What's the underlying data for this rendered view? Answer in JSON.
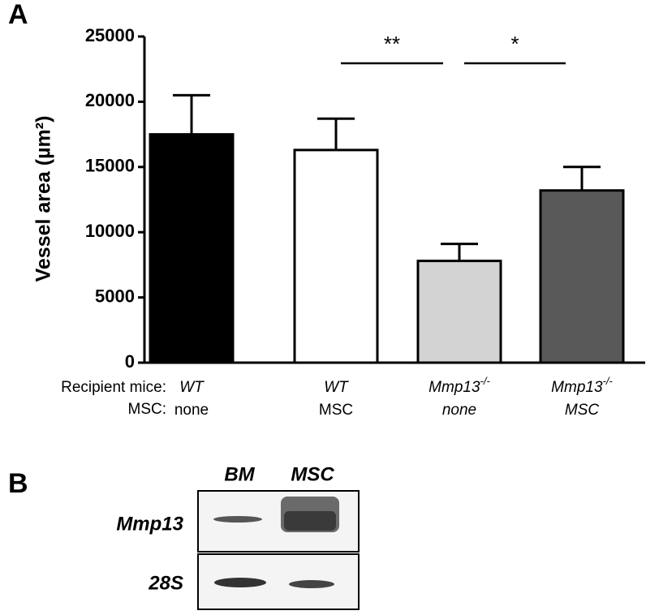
{
  "chart_data": {
    "type": "bar",
    "panel_label": "A",
    "ylabel": "Vessel area (µm²)",
    "ylim": [
      0,
      25000
    ],
    "yticks": [
      0,
      5000,
      10000,
      15000,
      20000,
      25000
    ],
    "row_labels": [
      "Recipient mice:",
      "MSC:"
    ],
    "categories": [
      "WT",
      "WT",
      "Mmp13",
      "Mmp13"
    ],
    "superscript": "-/-",
    "superscript_on": [
      false,
      false,
      true,
      true
    ],
    "msc": [
      "none",
      "MSC",
      "none",
      "MSC"
    ],
    "msc_italic": [
      false,
      false,
      true,
      true
    ],
    "values": [
      17500,
      16300,
      7800,
      13200
    ],
    "errors": [
      3000,
      2400,
      1300,
      1800
    ],
    "colors": [
      "#000000",
      "#ffffff",
      "#d3d3d3",
      "#595959"
    ],
    "annotations": [
      {
        "text": "**",
        "from": 1,
        "to": 2
      },
      {
        "text": "*",
        "from": 2,
        "to": 3
      }
    ]
  },
  "panel_b": {
    "label": "B",
    "columns": [
      "BM",
      "MSC"
    ],
    "rows": [
      "Mmp13",
      "28S"
    ]
  }
}
